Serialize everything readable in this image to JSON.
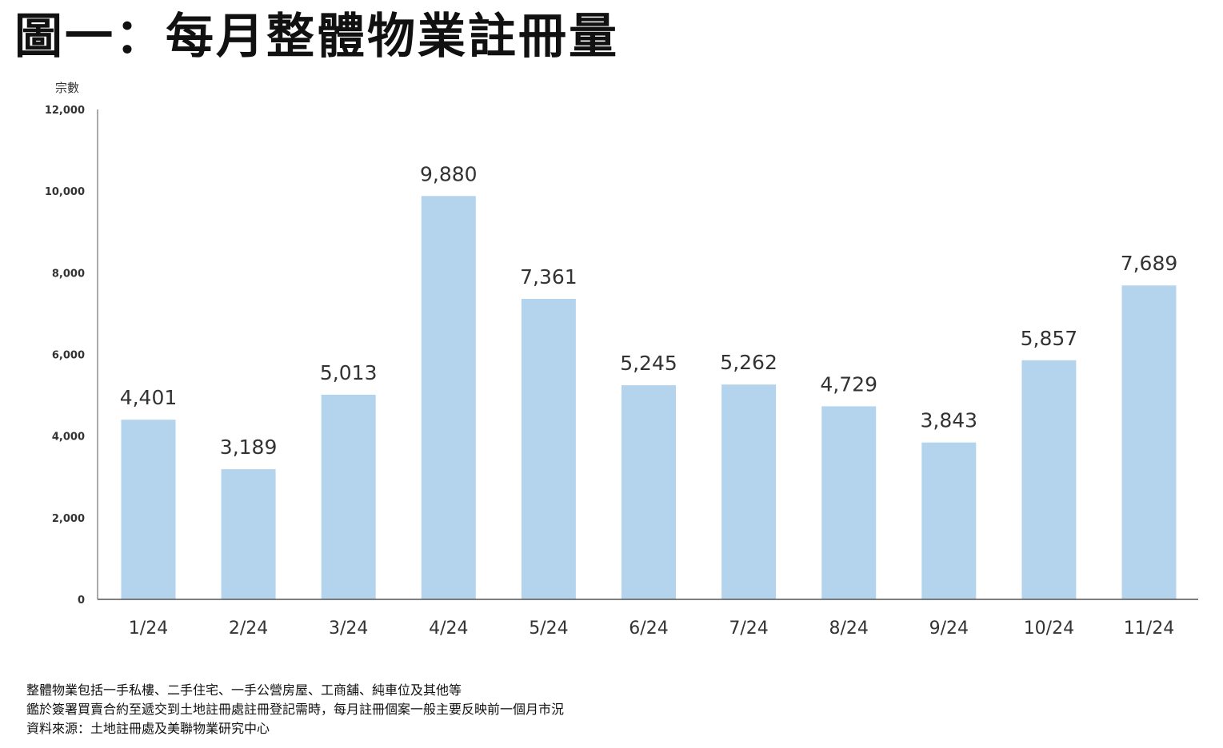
{
  "title": "圖一：每月整體物業註冊量",
  "chart_data": {
    "type": "bar",
    "title": "圖一：每月整體物業註冊量",
    "ylabel": "宗數",
    "xlabel": "",
    "categories": [
      "1/24",
      "2/24",
      "3/24",
      "4/24",
      "5/24",
      "6/24",
      "7/24",
      "8/24",
      "9/24",
      "10/24",
      "11/24"
    ],
    "values": [
      4401,
      3189,
      5013,
      9880,
      7361,
      5245,
      5262,
      4729,
      3843,
      5857,
      7689
    ],
    "value_labels": [
      "4,401",
      "3,189",
      "5,013",
      "9,880",
      "7,361",
      "5,245",
      "5,262",
      "4,729",
      "3,843",
      "5,857",
      "7,689"
    ],
    "yticks": [
      0,
      2000,
      4000,
      6000,
      8000,
      10000,
      12000
    ],
    "ytick_labels": [
      "0",
      "2,000",
      "4,000",
      "6,000",
      "8,000",
      "10,000",
      "12,000"
    ],
    "ylim": [
      0,
      12000
    ],
    "grid": false,
    "bar_color": "#b3d4ec",
    "axis_color": "#555555"
  },
  "notes": [
    "整體物業包括一手私樓、二手住宅、一手公營房屋、工商舖、純車位及其他等",
    "鑑於簽署買賣合約至遞交到土地註冊處註冊登記需時，每月註冊個案一般主要反映前一個月市況",
    "資料來源：土地註冊處及美聯物業研究中心"
  ]
}
